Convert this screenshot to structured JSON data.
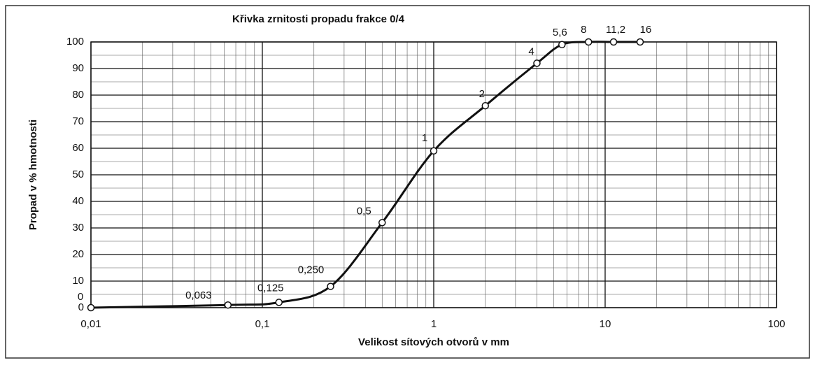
{
  "chart_data": {
    "type": "line",
    "title": "Křivka zrnitosti propadu frakce  0/4",
    "xlabel": "Velikost sítových otvorů v mm",
    "ylabel": "Propad v % hmotnosti",
    "x": [
      0.01,
      0.063,
      0.125,
      0.25,
      0.5,
      1,
      2,
      4,
      5.6,
      8,
      11.2,
      16
    ],
    "series": [
      {
        "color": "#111111",
        "values": [
          0,
          1,
          2,
          8,
          32,
          59,
          76,
          92,
          99,
          100,
          100,
          100
        ]
      }
    ],
    "point_labels": [
      "0",
      "0,063",
      "0,125",
      "0,250",
      "0,5",
      "1",
      "2",
      "4",
      "5,6",
      "8",
      "11,2",
      "16"
    ],
    "xscale": "log",
    "xlim": [
      0.01,
      100
    ],
    "xticks": [
      {
        "value": 0.01,
        "label": "0,01"
      },
      {
        "value": 0.1,
        "label": "0,1"
      },
      1,
      10,
      100
    ],
    "ylim": [
      0,
      100
    ],
    "yticks": [
      0,
      10,
      20,
      30,
      40,
      50,
      60,
      70,
      80,
      90,
      100
    ],
    "grid": true,
    "minor_grid": true
  }
}
